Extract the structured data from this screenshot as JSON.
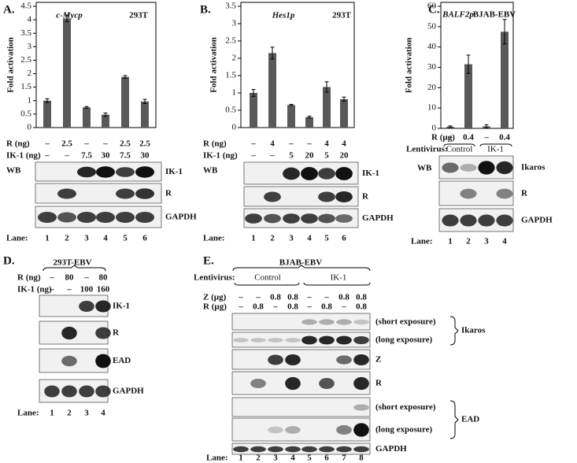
{
  "chart_data": [
    {
      "type": "bar",
      "panel": "A.",
      "ylabel": "Fold activation",
      "annotations": [
        "c-Mycp",
        "293T"
      ],
      "values": [
        1.0,
        4.05,
        0.75,
        0.48,
        1.88,
        0.97
      ],
      "errors": [
        0.07,
        0.12,
        0.03,
        0.06,
        0.05,
        0.08
      ],
      "color": "#595959",
      "ylim": [
        0,
        4.5
      ],
      "yticks": [
        0,
        0.5,
        1,
        1.5,
        2,
        2.5,
        3,
        3.5,
        4,
        4.5
      ],
      "rows": [
        {
          "label": "R (ng)",
          "values": [
            "–",
            "2.5",
            "–",
            "–",
            "2.5",
            "2.5"
          ]
        },
        {
          "label": "IK-1 (ng)",
          "values": [
            "–",
            "–",
            "7.5",
            "30",
            "7.5",
            "30"
          ]
        }
      ],
      "blot": {
        "label": "WB",
        "bands": [
          "IK-1",
          "R",
          "GAPDH"
        ],
        "lane_label": "Lane:",
        "lanes": [
          "1",
          "2",
          "3",
          "4",
          "5",
          "6"
        ]
      }
    },
    {
      "type": "bar",
      "panel": "B.",
      "ylabel": "Fold activation",
      "annotations": [
        "Hes1p",
        "293T"
      ],
      "values": [
        1.0,
        2.15,
        0.65,
        0.3,
        1.17,
        0.82
      ],
      "errors": [
        0.1,
        0.17,
        0.02,
        0.03,
        0.15,
        0.06
      ],
      "color": "#595959",
      "ylim": [
        0,
        3.5
      ],
      "yticks": [
        0,
        0.5,
        1,
        1.5,
        2,
        2.5,
        3,
        3.5
      ],
      "rows": [
        {
          "label": "R (ng)",
          "values": [
            "–",
            "4",
            "–",
            "–",
            "4",
            "4"
          ]
        },
        {
          "label": "IK-1 (ng)",
          "values": [
            "–",
            "–",
            "5",
            "20",
            "5",
            "20"
          ]
        }
      ],
      "blot": {
        "label": "WB",
        "bands": [
          "IK-1",
          "R",
          "GAPDH"
        ],
        "lane_label": "Lane:",
        "lanes": [
          "1",
          "2",
          "3",
          "4",
          "5",
          "6"
        ]
      }
    },
    {
      "type": "bar",
      "panel": "C.",
      "ylabel": "Fold activation",
      "annotations": [
        "BALF2p",
        "BJAB-EBV"
      ],
      "values": [
        0.8,
        31.5,
        1.0,
        47.5
      ],
      "errors": [
        0.4,
        4.5,
        0.8,
        6
      ],
      "color": "#595959",
      "ylim": [
        0,
        60
      ],
      "yticks": [
        0,
        10,
        20,
        30,
        40,
        50,
        60
      ],
      "rows": [
        {
          "label": "R (µg)",
          "values": [
            "–",
            "0.4",
            "–",
            "0.4"
          ]
        }
      ],
      "lentivirus": {
        "label": "Lentivirus:",
        "groups": [
          "Control",
          "IK-1"
        ]
      },
      "blot": {
        "label": "WB",
        "bands": [
          "Ikaros",
          "R",
          "GAPDH"
        ],
        "lane_label": "Lane:",
        "lanes": [
          "1",
          "2",
          "3",
          "4"
        ]
      }
    }
  ],
  "panels": [
    {
      "panel": "D.",
      "title": "293T-EBV",
      "rows": [
        {
          "label": "R (ng)",
          "values": [
            "–",
            "80",
            "–",
            "80"
          ]
        },
        {
          "label": "IK-1 (ng)",
          "values": [
            "–",
            "–",
            "100",
            "160"
          ]
        }
      ],
      "blot": {
        "bands": [
          "IK-1",
          "R",
          "EAD",
          "GAPDH"
        ],
        "lane_label": "Lane:",
        "lanes": [
          "1",
          "2",
          "3",
          "4"
        ]
      }
    },
    {
      "panel": "E.",
      "title": "BJAB-EBV",
      "lentivirus": {
        "label": "Lentivirus:",
        "groups": [
          "Control",
          "IK-1"
        ]
      },
      "rows": [
        {
          "label": "Z (µg)",
          "values": [
            "–",
            "–",
            "0.8",
            "0.8",
            "–",
            "–",
            "0.8",
            "0.8"
          ]
        },
        {
          "label": "R (µg)",
          "values": [
            "–",
            "0.8",
            "–",
            "0.8",
            "–",
            "0.8",
            "–",
            "0.8"
          ]
        }
      ],
      "blot": {
        "bands": [
          "(short exposure)",
          "(long exposure)",
          "Z",
          "R",
          "(short exposure)",
          "(long exposure)",
          "GAPDH"
        ],
        "band_groups": [
          "Ikaros",
          "EAD"
        ],
        "lane_label": "Lane:",
        "lanes": [
          "1",
          "2",
          "3",
          "4",
          "5",
          "6",
          "7",
          "8"
        ]
      }
    }
  ]
}
